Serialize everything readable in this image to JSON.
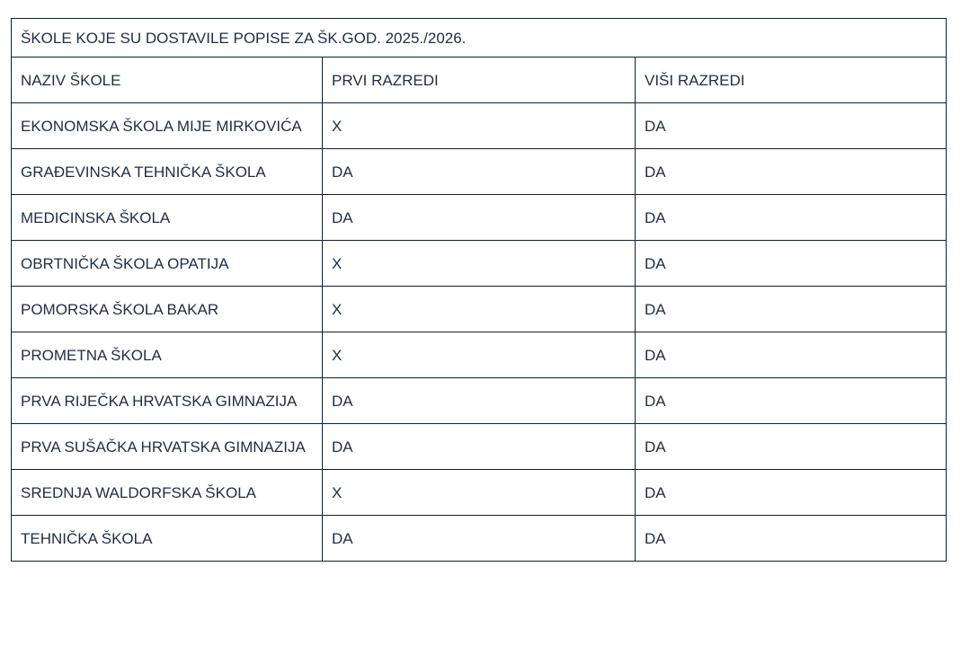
{
  "colors": {
    "text": "#1e2d47",
    "border": "#0b2233",
    "background": "#ffffff"
  },
  "table": {
    "title": "ŠKOLE KOJE SU DOSTAVILE POPISE ZA ŠK.GOD. 2025./2026.",
    "columns": [
      "NAZIV ŠKOLE",
      "PRVI RAZREDI",
      "VIŠI RAZREDI"
    ],
    "rows": [
      {
        "name": "EKONOMSKA ŠKOLA MIJE MIRKOVIĆA",
        "first_grades": "X",
        "higher_grades": "DA"
      },
      {
        "name": "GRAĐEVINSKA TEHNIČKA ŠKOLA",
        "first_grades": "DA",
        "higher_grades": "DA"
      },
      {
        "name": "MEDICINSKA ŠKOLA",
        "first_grades": "DA",
        "higher_grades": "DA"
      },
      {
        "name": "OBRTNIČKA ŠKOLA OPATIJA",
        "first_grades": "X",
        "higher_grades": "DA"
      },
      {
        "name": "POMORSKA ŠKOLA BAKAR",
        "first_grades": "X",
        "higher_grades": "DA"
      },
      {
        "name": "PROMETNA ŠKOLA",
        "first_grades": "X",
        "higher_grades": "DA"
      },
      {
        "name": "PRVA RIJEČKA HRVATSKA GIMNAZIJA",
        "first_grades": "DA",
        "higher_grades": "DA"
      },
      {
        "name": "PRVA SUŠAČKA HRVATSKA GIMNAZIJA",
        "first_grades": "DA",
        "higher_grades": "DA"
      },
      {
        "name": "SREDNJA WALDORFSKA ŠKOLA",
        "first_grades": "X",
        "higher_grades": "DA"
      },
      {
        "name": "TEHNIČKA ŠKOLA",
        "first_grades": "DA",
        "higher_grades": "DA"
      }
    ]
  }
}
